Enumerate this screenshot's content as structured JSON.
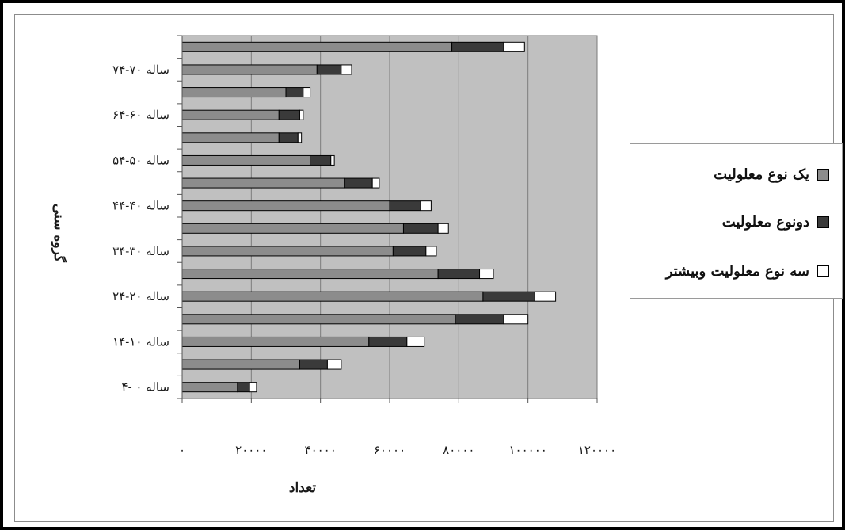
{
  "chart_data": {
    "type": "bar",
    "orientation": "horizontal",
    "stacked": true,
    "xlabel": "تعداد",
    "ylabel": "گروه سنی",
    "xlim": [
      0,
      120000
    ],
    "x_ticks": [
      "۰",
      "۲۰۰۰۰",
      "۴۰۰۰۰",
      "۶۰۰۰۰",
      "۸۰۰۰۰",
      "۱۰۰۰۰۰",
      "۱۲۰۰۰۰"
    ],
    "grid": true,
    "legend_position": "right",
    "categories": [
      "۴- ۰ ساله",
      "",
      "۱۴-۱۰ ساله",
      "",
      "۲۴-۲۰ ساله",
      "",
      "۳۴-۳۰ ساله",
      "",
      "۴۴-۴۰ ساله",
      "",
      "۵۴-۵۰ ساله",
      "",
      "۶۴-۶۰ ساله",
      "",
      "۷۴-۷۰ ساله",
      ""
    ],
    "series": [
      {
        "name": "یک نوع معلولیت",
        "color": "#8c8c8c",
        "values": [
          16000,
          34000,
          54000,
          79000,
          87000,
          74000,
          61000,
          64000,
          60000,
          47000,
          37000,
          28000,
          28000,
          30000,
          39000,
          78000
        ]
      },
      {
        "name": "دونوع معلولیت",
        "color": "#3a3a3a",
        "values": [
          3500,
          8000,
          11000,
          14000,
          15000,
          12000,
          9500,
          10000,
          9000,
          8000,
          6000,
          5500,
          6000,
          5000,
          7000,
          15000
        ]
      },
      {
        "name": "سه نوع معلولیت وبیشتر",
        "color": "#ffffff",
        "values": [
          2000,
          4000,
          5000,
          7000,
          6000,
          4000,
          3000,
          3000,
          3000,
          2000,
          1000,
          1000,
          1000,
          2000,
          3000,
          6000
        ]
      }
    ]
  }
}
